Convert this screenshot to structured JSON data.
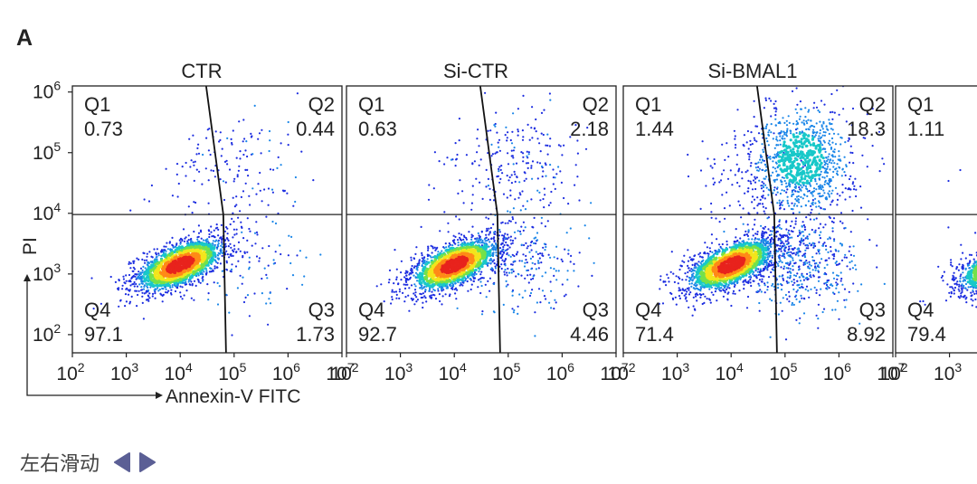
{
  "figure_label": "A",
  "chart_data": {
    "type": "scatter",
    "subtype": "flow-cytometry-density-quadrant",
    "x_axis": {
      "label": "Annexin-V FITC",
      "scale": "log",
      "ticks": [
        "2",
        "3",
        "4",
        "5",
        "6",
        "7"
      ],
      "range_log10": [
        2,
        7
      ]
    },
    "y_axis": {
      "label": "PI",
      "scale": "log",
      "ticks": [
        "2",
        "3",
        "4",
        "5",
        "6"
      ],
      "range_log10": [
        1.7,
        6.1
      ]
    },
    "gate": {
      "y_log10": 3.98
    },
    "panels": [
      {
        "title": "CTR",
        "q1": "0.73",
        "q2": "0.44",
        "q3": "1.73",
        "q4": "97.1",
        "gate_x_log10": 4.85,
        "cluster": {
          "x": 4.0,
          "y": 3.15
        }
      },
      {
        "title": "Si-CTR",
        "q1": "0.63",
        "q2": "2.18",
        "q3": "4.46",
        "q4": "92.7",
        "gate_x_log10": 4.85,
        "cluster": {
          "x": 4.0,
          "y": 3.15
        }
      },
      {
        "title": "Si-BMAL1",
        "q1": "1.44",
        "q2": "18.3",
        "q3": "8.92",
        "q4": "71.4",
        "gate_x_log10": 4.85,
        "cluster": {
          "x": 4.0,
          "y": 3.15
        }
      },
      {
        "title": "",
        "q1": "1.11",
        "q2": "",
        "q3": "",
        "q4": "79.4",
        "gate_x_log10": 4.85,
        "cluster": {
          "x": 4.0,
          "y": 3.15
        }
      }
    ],
    "quadrant_names": {
      "q1": "Q1",
      "q2": "Q2",
      "q3": "Q3",
      "q4": "Q4"
    },
    "tick_base": "10"
  },
  "slider": {
    "label": "左右滑动",
    "prev_icon": "triangle-left-icon",
    "next_icon": "triangle-right-icon",
    "color": "#5b5f95"
  }
}
